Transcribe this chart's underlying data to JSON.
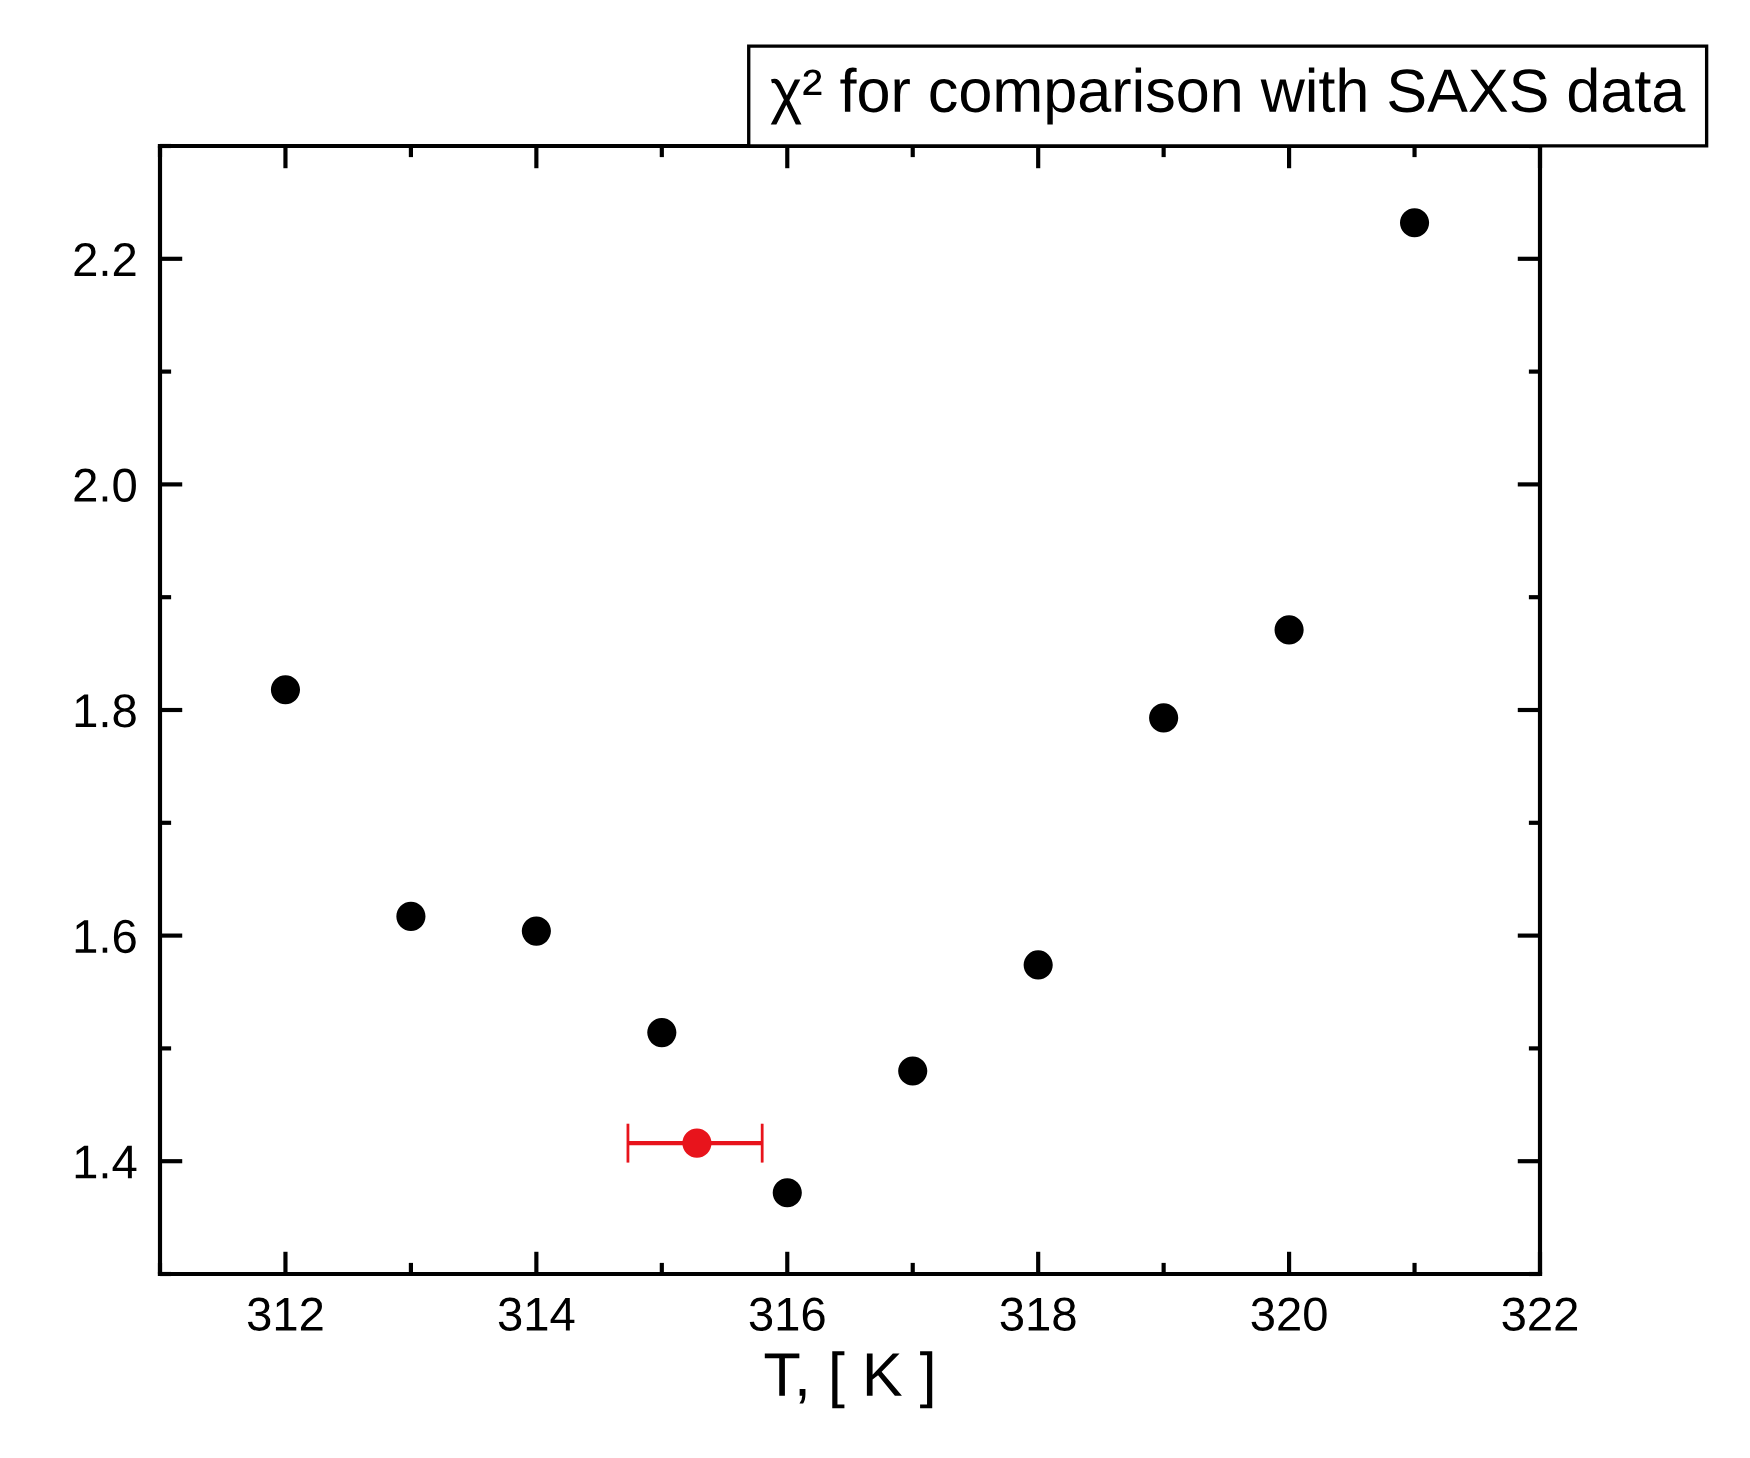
{
  "chart_data": {
    "type": "scatter",
    "title": "χ² for comparison with SAXS data",
    "xlabel": "T, [ K ]",
    "series": [
      {
        "color": "#000000",
        "x": [
          312,
          313,
          314,
          315,
          316,
          317,
          318,
          319,
          320,
          321
        ],
        "values": [
          1.818,
          1.617,
          1.604,
          1.514,
          1.372,
          1.48,
          1.574,
          1.793,
          1.871,
          2.232
        ]
      },
      {
        "color": "#e8141c",
        "x": [
          315.28
        ],
        "values": [
          1.416
        ],
        "xerrors": [
          [
            314.73,
            315.8
          ]
        ]
      }
    ],
    "xlim": [
      311,
      322
    ],
    "ylim": [
      1.3,
      2.3
    ],
    "xticks": [
      312,
      314,
      316,
      318,
      320,
      322
    ],
    "yticks": [
      1.4,
      1.6,
      1.8,
      {
        "value": 2,
        "label": "2.0"
      },
      2.2
    ],
    "grid": false,
    "legend": false,
    "marker": "circle"
  }
}
